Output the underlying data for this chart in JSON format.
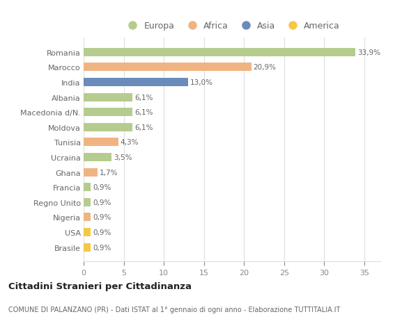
{
  "countries": [
    "Romania",
    "Marocco",
    "India",
    "Albania",
    "Macedonia d/N.",
    "Moldova",
    "Tunisia",
    "Ucraina",
    "Ghana",
    "Francia",
    "Regno Unito",
    "Nigeria",
    "USA",
    "Brasile"
  ],
  "values": [
    33.9,
    20.9,
    13.0,
    6.1,
    6.1,
    6.1,
    4.3,
    3.5,
    1.7,
    0.9,
    0.9,
    0.9,
    0.9,
    0.9
  ],
  "labels": [
    "33,9%",
    "20,9%",
    "13,0%",
    "6,1%",
    "6,1%",
    "6,1%",
    "4,3%",
    "3,5%",
    "1,7%",
    "0,9%",
    "0,9%",
    "0,9%",
    "0,9%",
    "0,9%"
  ],
  "continents": [
    "Europa",
    "Africa",
    "Asia",
    "Europa",
    "Europa",
    "Europa",
    "Africa",
    "Europa",
    "Africa",
    "Europa",
    "Europa",
    "Africa",
    "America",
    "America"
  ],
  "continent_colors": {
    "Europa": "#b5cc8e",
    "Africa": "#f0b482",
    "Asia": "#6b8cba",
    "America": "#f5c842"
  },
  "legend_order": [
    "Europa",
    "Africa",
    "Asia",
    "America"
  ],
  "title": "Cittadini Stranieri per Cittadinanza",
  "subtitle": "COMUNE DI PALANZANO (PR) - Dati ISTAT al 1° gennaio di ogni anno - Elaborazione TUTTITALIA.IT",
  "xlim": [
    0,
    37
  ],
  "xticks": [
    0,
    5,
    10,
    15,
    20,
    25,
    30,
    35
  ],
  "background_color": "#ffffff",
  "grid_color": "#dddddd",
  "bar_height": 0.55,
  "fig_width": 6.0,
  "fig_height": 4.6
}
